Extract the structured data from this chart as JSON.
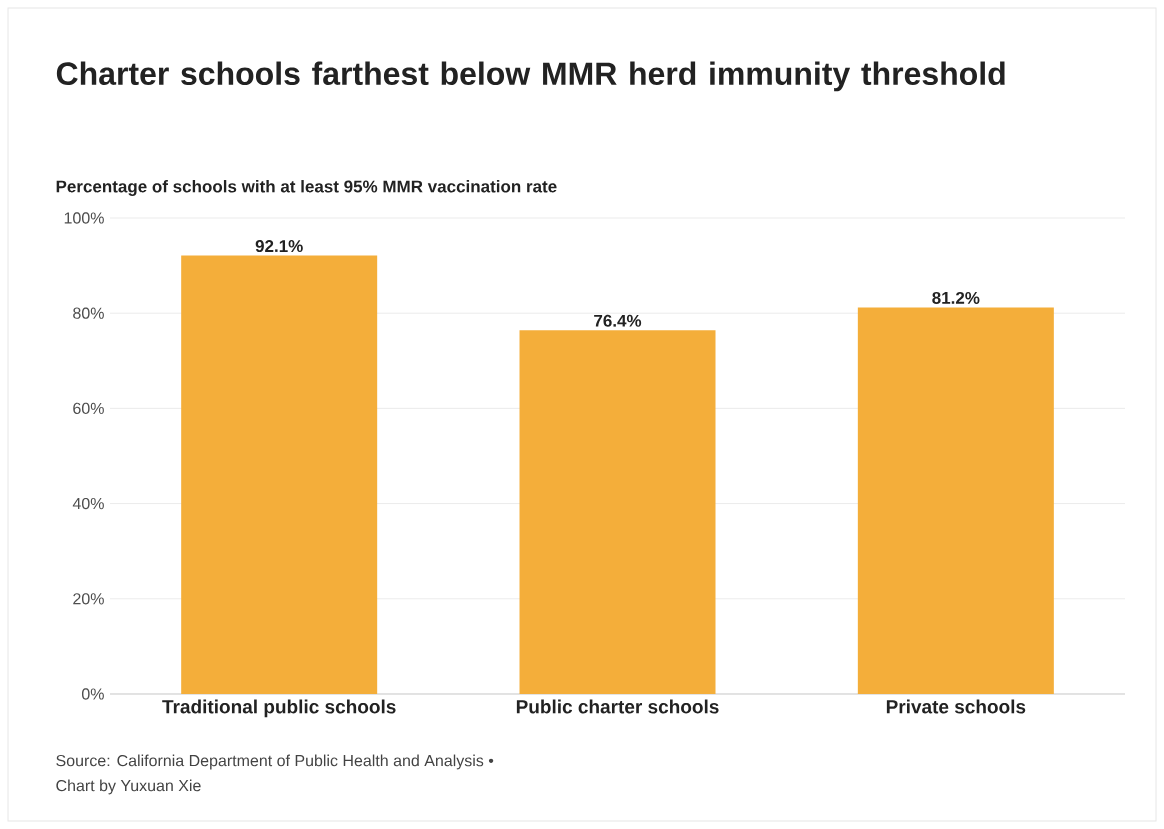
{
  "chart_data": {
    "type": "bar",
    "title": "Charter schools farthest below MMR herd immunity threshold",
    "subtitle": "Percentage of schools with at least 95% MMR vaccination rate",
    "categories": [
      "Traditional public schools",
      "Public charter schools",
      "Private schools"
    ],
    "values": [
      92.1,
      76.4,
      81.2
    ],
    "value_labels": [
      "92.1%",
      "76.4%",
      "81.2%"
    ],
    "color": "#f4ae3a",
    "ylim": [
      0,
      100
    ],
    "yticks": [
      {
        "value": 0,
        "label": "0%"
      },
      {
        "value": 20,
        "label": "20%"
      },
      {
        "value": 40,
        "label": "40%"
      },
      {
        "value": 60,
        "label": "60%"
      },
      {
        "value": 80,
        "label": "80%"
      },
      {
        "value": 100,
        "label": "100%"
      }
    ],
    "grid": "y",
    "annotations": [
      "Source: California Department of Public Health and Analysis •",
      "Chart by Yuxuan Xie"
    ]
  }
}
